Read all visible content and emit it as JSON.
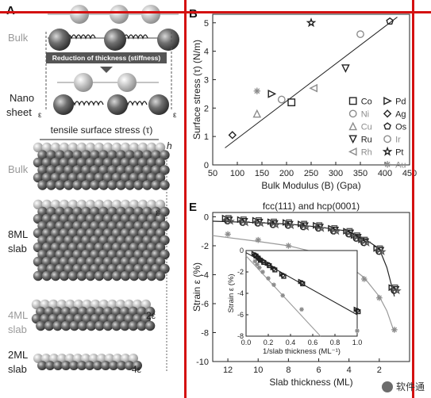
{
  "panels": {
    "a_label": "A",
    "b_label": "B",
    "e_label": "E",
    "left": {
      "bulk_top": "Bulk",
      "reduction": "Reduction of thickness (stiffness)",
      "nano_sheet": [
        "Nano",
        "sheet"
      ],
      "eps_small": "ε",
      "tensile": "tensile surface stress (τ)",
      "h": "h",
      "bulk_mid": "Bulk",
      "eps": "ε",
      "ml8": [
        "8ML",
        "slab"
      ],
      "ml4": [
        "4ML",
        "slab"
      ],
      "two_eps": "2ε",
      "ml2": [
        "2ML",
        "slab"
      ],
      "four_eps": "4ε"
    }
  },
  "watermark": "软件通",
  "colors": {
    "frame_red": "#d41111",
    "grey_point": "#8c8c8c",
    "dark": "#222222"
  },
  "chart_data": [
    {
      "type": "scatter",
      "panel": "B",
      "title": "",
      "xlabel": "Bulk Modulus (B) (Gpa)",
      "ylabel": "Surface stress (τ) (N/m)",
      "xlim": [
        50,
        450
      ],
      "ylim": [
        0,
        5.3
      ],
      "xticks": [
        50,
        100,
        150,
        200,
        250,
        300,
        350,
        400,
        450
      ],
      "yticks": [
        0,
        1,
        2,
        3,
        4,
        5
      ],
      "fit_line": {
        "x": [
          75,
          425
        ],
        "y": [
          0.6,
          5.2
        ]
      },
      "legend": {
        "placement": "bottom-right",
        "entries": [
          "Co",
          "Ni",
          "Cu",
          "Ru",
          "Rh",
          "Pd",
          "Ag",
          "Os",
          "Ir",
          "Pt",
          "Au"
        ]
      },
      "series": [
        {
          "name": "Co",
          "marker": "square",
          "x": [
            210
          ],
          "y": [
            2.2
          ]
        },
        {
          "name": "Ni",
          "marker": "circle",
          "x": [
            190
          ],
          "y": [
            2.3
          ]
        },
        {
          "name": "Cu",
          "marker": "triangle-up",
          "x": [
            140
          ],
          "y": [
            1.8
          ]
        },
        {
          "name": "Ru",
          "marker": "triangle-down",
          "x": [
            320
          ],
          "y": [
            3.4
          ]
        },
        {
          "name": "Rh",
          "marker": "triangle-left",
          "x": [
            255
          ],
          "y": [
            2.7
          ]
        },
        {
          "name": "Pd",
          "marker": "triangle-right",
          "x": [
            170
          ],
          "y": [
            2.5
          ]
        },
        {
          "name": "Ag",
          "marker": "diamond",
          "x": [
            90
          ],
          "y": [
            1.05
          ]
        },
        {
          "name": "Os",
          "marker": "pentagon",
          "x": [
            410
          ],
          "y": [
            5.05
          ]
        },
        {
          "name": "Ir",
          "marker": "circle",
          "x": [
            350
          ],
          "y": [
            4.6
          ]
        },
        {
          "name": "Pt",
          "marker": "star",
          "x": [
            250
          ],
          "y": [
            5.0
          ]
        },
        {
          "name": "Au",
          "marker": "asterisk",
          "x": [
            140
          ],
          "y": [
            2.6
          ]
        }
      ]
    },
    {
      "type": "scatter",
      "panel": "E",
      "title": "fcc(111) and hcp(0001)",
      "xlabel": "Slab thickness (ML)",
      "ylabel": "Strain ε (%)",
      "xlim": [
        13,
        0
      ],
      "ylim": [
        -10,
        0.3
      ],
      "xticks": [
        12,
        10,
        8,
        6,
        4,
        2
      ],
      "yticks": [
        0,
        -2,
        -4,
        -6,
        -8,
        -10
      ],
      "curves": [
        {
          "color": "#222222",
          "x": [
            13,
            10,
            8,
            6,
            4,
            3,
            2,
            1.5,
            1
          ],
          "y": [
            -0.3,
            -0.4,
            -0.5,
            -0.7,
            -1.0,
            -1.5,
            -2.2,
            -3.5,
            -5.5
          ]
        },
        {
          "color": "#9a9a9a",
          "x": [
            13,
            10,
            8,
            6,
            4,
            3,
            2,
            1.5,
            1
          ],
          "y": [
            -1.3,
            -1.7,
            -2.0,
            -2.5,
            -3.4,
            -4.2,
            -5.5,
            -6.5,
            -8.0
          ]
        }
      ],
      "series": [
        {
          "name": "dark-cluster",
          "marker": "mixed",
          "x": [
            12,
            11,
            10,
            9,
            8,
            7,
            6,
            5,
            4,
            3.5,
            3,
            2,
            1
          ],
          "y": [
            -0.2,
            -0.3,
            -0.35,
            -0.45,
            -0.5,
            -0.6,
            -0.7,
            -0.9,
            -1.1,
            -1.4,
            -1.7,
            -2.3,
            -5.0
          ]
        },
        {
          "name": "grey-cluster",
          "marker": "asterisk",
          "x": [
            12,
            10,
            8,
            6,
            4,
            3,
            2,
            1
          ],
          "y": [
            -1.2,
            -1.6,
            -2.0,
            -2.6,
            -3.5,
            -4.3,
            -5.6,
            -7.8
          ]
        }
      ],
      "inset": {
        "xlabel": "1/slab thickness (ML⁻¹)",
        "ylabel": "Strain ε (%)",
        "xlim": [
          0.0,
          1.0
        ],
        "ylim": [
          -8,
          0
        ],
        "xticks": [
          "0.0",
          "0.2",
          "0.4",
          "0.6",
          "0.8",
          "1.0"
        ],
        "yticks": [
          "0",
          "-2",
          "-4",
          "-6",
          "-8"
        ],
        "lines": [
          {
            "color": "#222222",
            "x": [
              0.0,
              1.0
            ],
            "y": [
              -0.2,
              -6.0
            ]
          },
          {
            "color": "#9a9a9a",
            "x": [
              0.0,
              0.67
            ],
            "y": [
              -0.5,
              -8.0
            ]
          }
        ],
        "points_dark": {
          "x": [
            0.08,
            0.1,
            0.12,
            0.15,
            0.2,
            0.25,
            0.33,
            0.5,
            1.0
          ],
          "y": [
            -0.4,
            -0.6,
            -0.8,
            -1.0,
            -1.3,
            -1.7,
            -2.3,
            -3.0,
            -5.6
          ]
        },
        "points_grey": {
          "x": [
            0.08,
            0.1,
            0.12,
            0.15,
            0.2,
            0.25,
            0.33,
            0.5,
            1.0
          ],
          "y": [
            -1.0,
            -1.3,
            -1.6,
            -2.0,
            -2.6,
            -3.2,
            -4.2,
            -5.5,
            -7.5
          ]
        }
      }
    }
  ]
}
